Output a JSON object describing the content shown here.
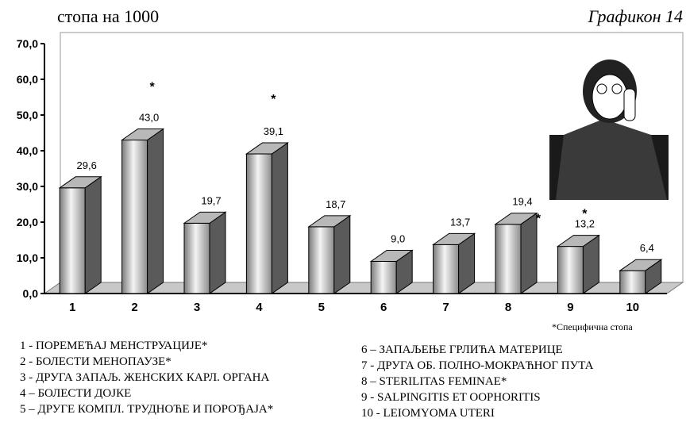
{
  "chart_data": {
    "type": "bar",
    "unit_label": "стопа на 1000",
    "title": "Графикон 14",
    "categories": [
      "1",
      "2",
      "3",
      "4",
      "5",
      "6",
      "7",
      "8",
      "9",
      "10"
    ],
    "values": [
      29.6,
      43.0,
      19.7,
      39.1,
      18.7,
      9.0,
      13.7,
      19.4,
      13.2,
      6.4
    ],
    "value_labels": [
      "29,6",
      "43,0",
      "19,7",
      "39,1",
      "18,7",
      "9,0",
      "13,7",
      "19,4",
      "13,2",
      "6,4"
    ],
    "color": "#b8b8b8",
    "ylim": [
      0,
      70
    ],
    "yticks": [
      {
        "value": 0,
        "label": "0,0"
      },
      {
        "value": 10,
        "label": "10,0"
      },
      {
        "value": 20,
        "label": "20,0"
      },
      {
        "value": 30,
        "label": "30,0"
      },
      {
        "value": 40,
        "label": "40,0"
      },
      {
        "value": 50,
        "label": "50,0"
      },
      {
        "value": 60,
        "label": "60,0"
      },
      {
        "value": 70,
        "label": "70,0"
      }
    ],
    "grid": false,
    "annotations": [
      {
        "text": "*",
        "x": "2"
      },
      {
        "text": "*",
        "x": "4"
      },
      {
        "text": "*",
        "x": "8"
      },
      {
        "text": "*",
        "x": "9"
      }
    ],
    "footnote": "*Специфична стопа",
    "legend_items": [
      "1 - ПОРЕМЕЋАЈ МЕНСТРУАЦИЈЕ*",
      "2 -  БОЛЕСТИ МЕНОПАУЗЕ*",
      "3 - ДРУГА ЗАПАЉ. ЖЕНСКИХ КАРЛ. ОРГАНА",
      "4 – БОЛЕСТИ ДОЈКЕ",
      "5 – ДРУГЕ КОМПЛ. ТРУДНОЋЕ И ПОРОЂАЈА*",
      "6 – ЗАПАЉЕЊЕ ГРЛИЋА МАТЕРИЦЕ",
      "7 -  ДРУГА ОБ. ПОЛНО-МОКРАЋНОГ ПУТА",
      "8 – STERILITAS FEMINAE*",
      "9 - SALPINGITIS ET OOPHORITIS",
      "10 -  LEIOMYOMA UTERI"
    ]
  }
}
